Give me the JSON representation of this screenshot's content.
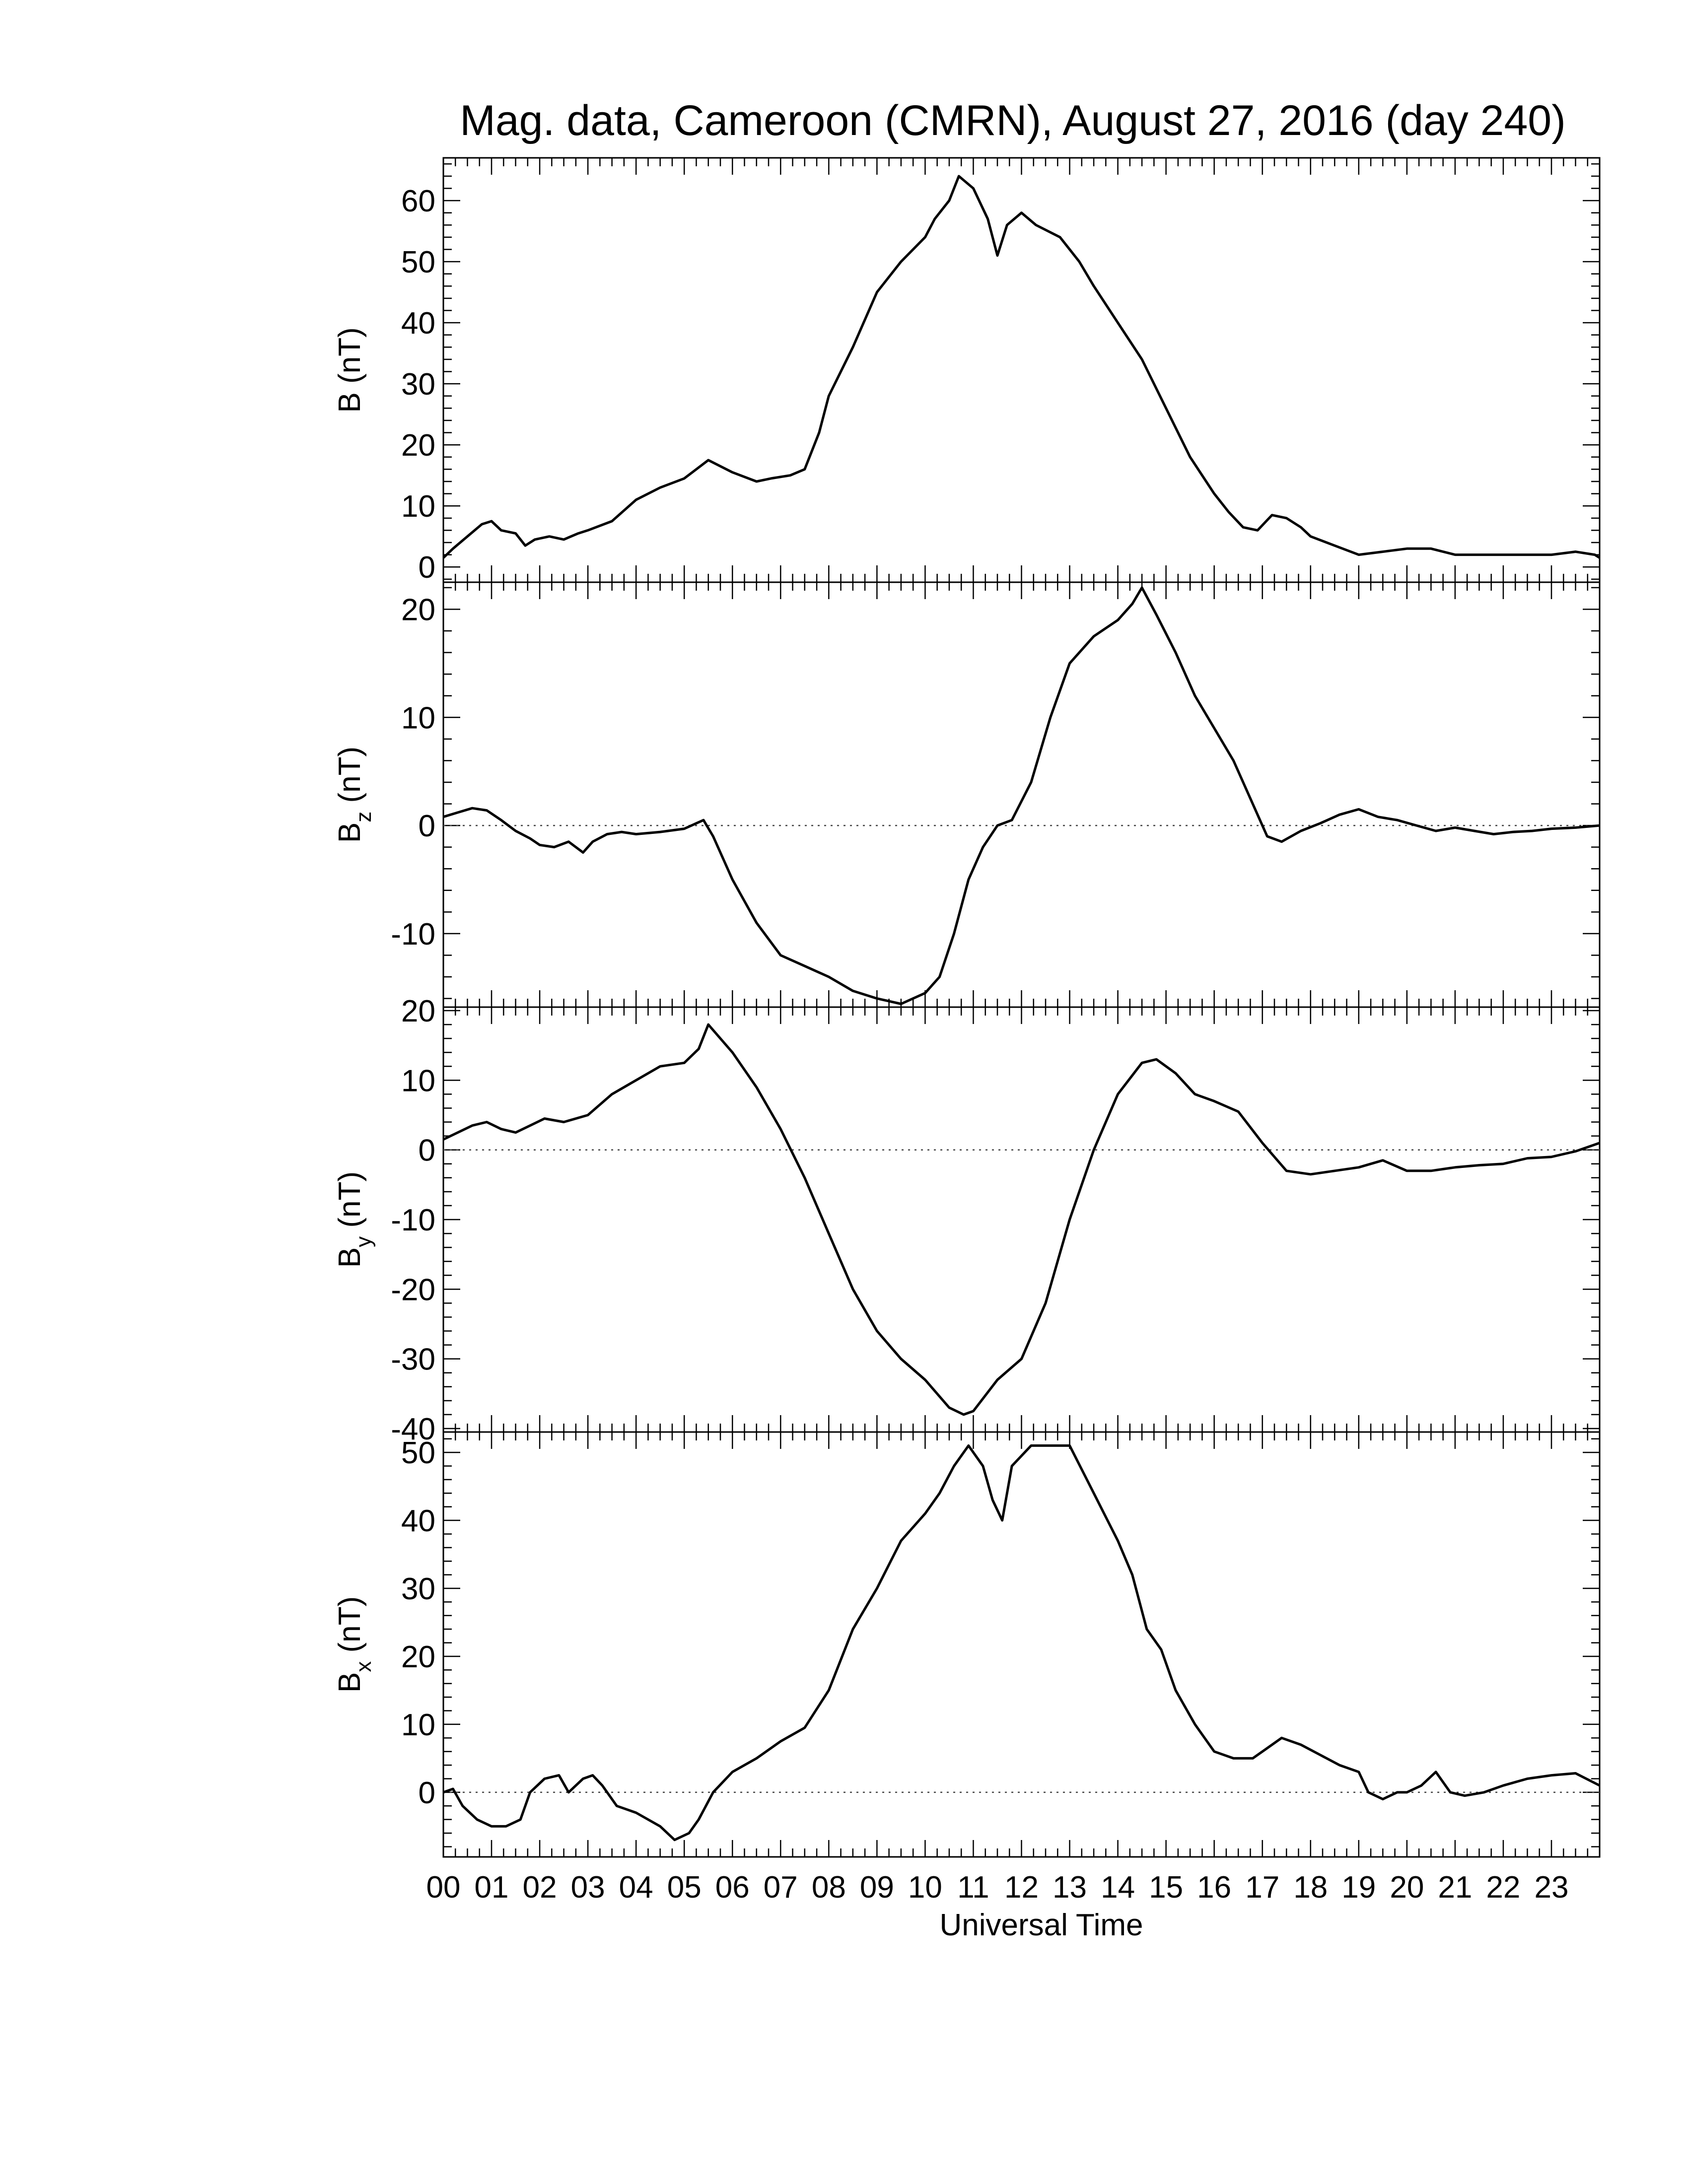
{
  "title": "Mag. data, Cameroon (CMRN), August 27, 2016 (day 240)",
  "colors": {
    "line": "#000000",
    "background": "#ffffff",
    "zero_line": "#444444"
  },
  "chart_data": [
    {
      "type": "line",
      "name": "B",
      "ylabel": "B (nT)",
      "ylabel_main": "B",
      "ylabel_sub": "",
      "ylabel_unit": " (nT)",
      "ylim": [
        -2.5,
        67
      ],
      "yticks": [
        0,
        10,
        20,
        30,
        40,
        50,
        60
      ],
      "zero_line": false,
      "x": [
        0,
        0.2,
        0.5,
        0.8,
        1.0,
        1.2,
        1.5,
        1.7,
        1.9,
        2.2,
        2.5,
        2.8,
        3.0,
        3.5,
        4.0,
        4.5,
        5.0,
        5.5,
        6.0,
        6.5,
        6.8,
        7.2,
        7.5,
        7.8,
        8.0,
        8.5,
        9.0,
        9.5,
        10.0,
        10.2,
        10.5,
        10.7,
        11.0,
        11.3,
        11.5,
        11.7,
        12.0,
        12.3,
        12.8,
        13.2,
        13.5,
        14.0,
        14.5,
        15.0,
        15.5,
        16.0,
        16.3,
        16.6,
        16.9,
        17.2,
        17.5,
        17.8,
        18.0,
        18.5,
        19.0,
        19.5,
        20.0,
        20.5,
        21.0,
        21.5,
        22.0,
        22.5,
        23.0,
        23.5,
        23.9,
        24.0
      ],
      "y": [
        1.5,
        3,
        5,
        7,
        7.5,
        6,
        5.5,
        3.5,
        4.5,
        5,
        4.5,
        5.5,
        6,
        7.5,
        11,
        13,
        14.5,
        17.5,
        15.5,
        14,
        14.5,
        15,
        16,
        22,
        28,
        36,
        45,
        50,
        54,
        57,
        60,
        64,
        62,
        57,
        51,
        56,
        58,
        56,
        54,
        50,
        46,
        40,
        34,
        26,
        18,
        12,
        9,
        6.5,
        6,
        8.5,
        8,
        6.5,
        5,
        3.5,
        2,
        2.5,
        3,
        3,
        2,
        2,
        2,
        2,
        2,
        2.5,
        2,
        1.5
      ]
    },
    {
      "type": "line",
      "name": "Bz",
      "ylabel": "Bz (nT)",
      "ylabel_main": "B",
      "ylabel_sub": "z",
      "ylabel_unit": " (nT)",
      "ylim": [
        -16.8,
        22.5
      ],
      "yticks": [
        -10,
        0,
        10,
        20
      ],
      "zero_line": true,
      "x": [
        0,
        0.3,
        0.6,
        0.9,
        1.2,
        1.5,
        1.8,
        2.0,
        2.3,
        2.6,
        2.9,
        3.1,
        3.4,
        3.7,
        4.0,
        4.5,
        5.0,
        5.4,
        5.6,
        6.0,
        6.5,
        7.0,
        7.5,
        8.0,
        8.5,
        9.0,
        9.5,
        10.0,
        10.3,
        10.6,
        10.9,
        11.2,
        11.5,
        11.8,
        12.2,
        12.6,
        13.0,
        13.5,
        14.0,
        14.3,
        14.5,
        14.8,
        15.2,
        15.6,
        16.0,
        16.4,
        16.8,
        17.1,
        17.4,
        17.8,
        18.2,
        18.6,
        19.0,
        19.4,
        19.8,
        20.2,
        20.6,
        21.0,
        21.4,
        21.8,
        22.2,
        22.6,
        23.0,
        23.5,
        24.0
      ],
      "y": [
        0.8,
        1.2,
        1.6,
        1.4,
        0.5,
        -0.5,
        -1.2,
        -1.8,
        -2,
        -1.5,
        -2.5,
        -1.5,
        -0.8,
        -0.6,
        -0.8,
        -0.6,
        -0.3,
        0.5,
        -1,
        -5,
        -9,
        -12,
        -13,
        -14,
        -15.3,
        -16,
        -16.5,
        -15.5,
        -14,
        -10,
        -5,
        -2,
        0,
        0.5,
        4,
        10,
        15,
        17.5,
        19,
        20.5,
        22,
        19.5,
        16,
        12,
        9,
        6,
        2,
        -1,
        -1.5,
        -0.5,
        0.2,
        1,
        1.5,
        0.8,
        0.5,
        0,
        -0.5,
        -0.2,
        -0.5,
        -0.8,
        -0.6,
        -0.5,
        -0.3,
        -0.2,
        0
      ]
    },
    {
      "type": "line",
      "name": "By",
      "ylabel": "By (nT)",
      "ylabel_main": "B",
      "ylabel_sub": "y",
      "ylabel_unit": " (nT)",
      "ylim": [
        -40.5,
        20.5
      ],
      "yticks": [
        -40,
        -30,
        -20,
        -10,
        0,
        10,
        20
      ],
      "zero_line": true,
      "x": [
        0,
        0.3,
        0.6,
        0.9,
        1.2,
        1.5,
        1.8,
        2.1,
        2.5,
        3.0,
        3.5,
        4.0,
        4.5,
        5.0,
        5.3,
        5.5,
        6.0,
        6.5,
        7.0,
        7.5,
        8.0,
        8.5,
        9.0,
        9.5,
        10.0,
        10.5,
        10.8,
        11.0,
        11.5,
        12.0,
        12.5,
        13.0,
        13.5,
        14.0,
        14.5,
        14.8,
        15.2,
        15.6,
        16.0,
        16.5,
        17.0,
        17.5,
        18.0,
        18.5,
        19.0,
        19.5,
        20.0,
        20.5,
        21.0,
        21.5,
        22.0,
        22.5,
        23.0,
        23.5,
        24.0
      ],
      "y": [
        1.5,
        2.5,
        3.5,
        4,
        3,
        2.5,
        3.5,
        4.5,
        4,
        5,
        8,
        10,
        12,
        12.5,
        14.5,
        18,
        14,
        9,
        3,
        -4,
        -12,
        -20,
        -26,
        -30,
        -33,
        -37,
        -38,
        -37.5,
        -33,
        -30,
        -22,
        -10,
        0,
        8,
        12.5,
        13,
        11,
        8,
        7,
        5.5,
        1,
        -3,
        -3.5,
        -3,
        -2.5,
        -1.5,
        -3,
        -3,
        -2.5,
        -2.2,
        -2,
        -1.2,
        -1,
        -0.2,
        1
      ]
    },
    {
      "type": "line",
      "name": "Bx",
      "ylabel": "Bx (nT)",
      "ylabel_main": "B",
      "ylabel_sub": "x",
      "ylabel_unit": " (nT)",
      "ylim": [
        -9.5,
        53
      ],
      "yticks": [
        0,
        10,
        20,
        30,
        40,
        50
      ],
      "zero_line": true,
      "x": [
        0,
        0.2,
        0.4,
        0.7,
        1.0,
        1.3,
        1.6,
        1.8,
        2.1,
        2.4,
        2.6,
        2.9,
        3.1,
        3.3,
        3.6,
        4.0,
        4.5,
        4.8,
        5.1,
        5.3,
        5.6,
        6.0,
        6.5,
        7.0,
        7.5,
        8.0,
        8.5,
        9.0,
        9.5,
        10.0,
        10.3,
        10.6,
        10.9,
        11.2,
        11.4,
        11.6,
        11.8,
        12.2,
        12.6,
        13.0,
        13.5,
        14.0,
        14.3,
        14.6,
        14.9,
        15.2,
        15.6,
        16.0,
        16.4,
        16.8,
        17.1,
        17.4,
        17.8,
        18.2,
        18.6,
        19.0,
        19.2,
        19.5,
        19.8,
        20.0,
        20.3,
        20.6,
        20.9,
        21.2,
        21.6,
        22.0,
        22.5,
        23.0,
        23.5,
        24.0
      ],
      "y": [
        0,
        0.5,
        -2,
        -4,
        -5,
        -5,
        -4,
        0,
        2,
        2.5,
        0,
        2,
        2.5,
        1,
        -2,
        -3,
        -5,
        -7,
        -6,
        -4,
        0,
        3,
        5,
        7.5,
        9.5,
        15,
        24,
        30,
        37,
        41,
        44,
        48,
        51,
        48,
        43,
        40,
        48,
        51,
        51,
        51,
        44,
        37,
        32,
        24,
        21,
        15,
        10,
        6,
        5,
        5,
        6.5,
        8,
        7,
        5.5,
        4,
        3,
        0,
        -1,
        0,
        0,
        1,
        3,
        0,
        -0.5,
        0,
        1,
        2,
        2.5,
        2.8,
        1
      ]
    }
  ],
  "x_axis": {
    "label": "Universal Time",
    "range": [
      0,
      24
    ],
    "tick_labels": [
      "00",
      "01",
      "02",
      "03",
      "04",
      "05",
      "06",
      "07",
      "08",
      "09",
      "10",
      "11",
      "12",
      "13",
      "14",
      "15",
      "16",
      "17",
      "18",
      "19",
      "20",
      "21",
      "22",
      "23"
    ]
  }
}
